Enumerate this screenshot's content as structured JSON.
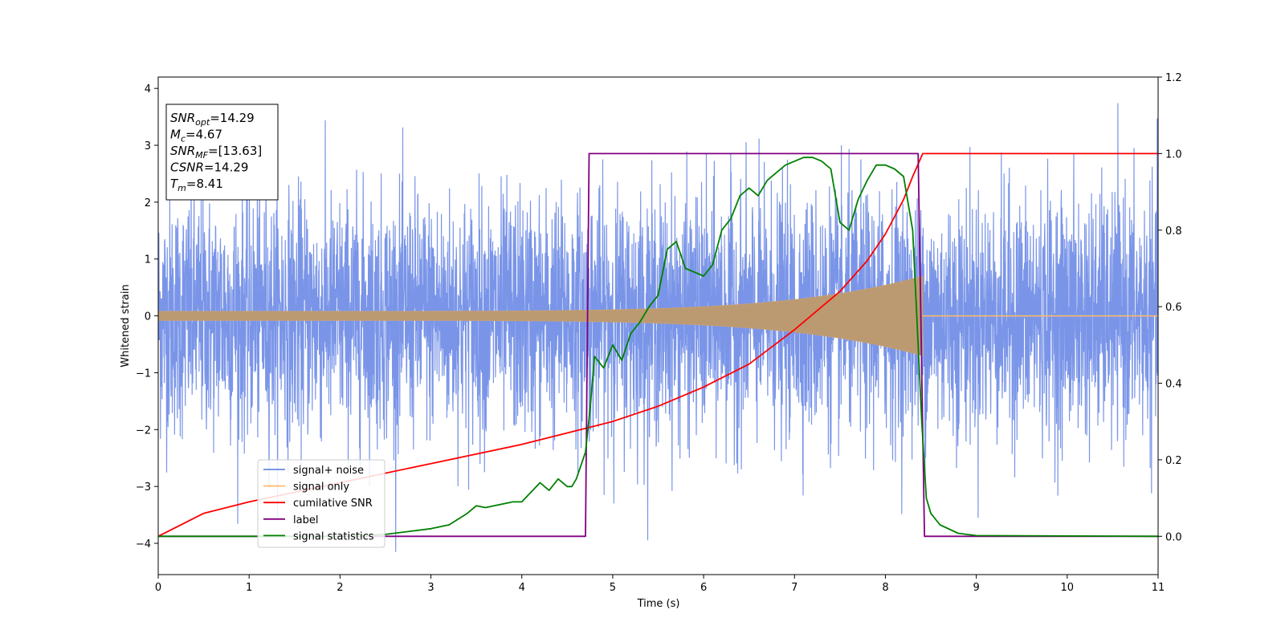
{
  "chart_data": {
    "type": "line",
    "xlabel": "Time (s)",
    "ylabel": "Whitened strain",
    "xlim": [
      0,
      11
    ],
    "ylim_left": [
      -4.55,
      4.2
    ],
    "ylim_right": [
      -0.1,
      1.2
    ],
    "x_ticks": [
      0,
      1,
      2,
      3,
      4,
      5,
      6,
      7,
      8,
      9,
      10,
      11
    ],
    "y_ticks_left": [
      -4,
      -3,
      -2,
      -1,
      0,
      1,
      2,
      3,
      4
    ],
    "y_ticks_left_labels": [
      "−4",
      "−3",
      "−2",
      "−1",
      "0",
      "1",
      "2",
      "3",
      "4"
    ],
    "y_ticks_right": [
      0.0,
      0.2,
      0.4,
      0.6,
      0.8,
      1.0,
      1.2
    ],
    "y_ticks_right_labels": [
      "0.0",
      "0.2",
      "0.4",
      "0.6",
      "0.8",
      "1.0",
      "1.2"
    ],
    "legend_position": "lower-left",
    "colors": {
      "noise": "#6b8ae6",
      "signal": "#ffbb66",
      "cumsnr": "#ff0000",
      "label": "#800080",
      "stats": "#008000"
    },
    "series": [
      {
        "name": "signal+ noise",
        "axis": "left",
        "description": "noisy whitened strain, roughly ±2 with peaks ±3.8",
        "x_range": [
          0,
          11
        ]
      },
      {
        "name": "signal only",
        "axis": "left",
        "chirp_start": 0,
        "chirp_end": 8.41,
        "amplitude_start": 0.08,
        "amplitude_end": 0.7
      },
      {
        "name": "cumilative SNR",
        "axis": "right",
        "x": [
          0,
          0.5,
          1,
          2,
          3,
          4,
          4.5,
          5,
          5.5,
          6,
          6.5,
          7,
          7.5,
          7.8,
          8.0,
          8.2,
          8.3,
          8.41,
          11
        ],
        "values": [
          0.0,
          0.06,
          0.09,
          0.14,
          0.19,
          0.24,
          0.27,
          0.3,
          0.34,
          0.39,
          0.45,
          0.54,
          0.64,
          0.72,
          0.79,
          0.88,
          0.94,
          1.0,
          1.0
        ]
      },
      {
        "name": "label",
        "axis": "right",
        "x": [
          0,
          4.7,
          4.74,
          8.36,
          8.43,
          11
        ],
        "values": [
          0,
          0,
          1,
          1,
          0,
          0
        ]
      },
      {
        "name": "signal statistics",
        "axis": "right",
        "x": [
          0,
          1,
          2,
          2.5,
          3,
          3.2,
          3.4,
          3.5,
          3.6,
          3.8,
          3.9,
          4.0,
          4.2,
          4.3,
          4.4,
          4.5,
          4.55,
          4.6,
          4.7,
          4.75,
          4.8,
          4.9,
          5.0,
          5.1,
          5.2,
          5.3,
          5.4,
          5.5,
          5.6,
          5.7,
          5.8,
          5.9,
          6.0,
          6.1,
          6.2,
          6.3,
          6.4,
          6.5,
          6.6,
          6.7,
          6.8,
          6.9,
          7.0,
          7.1,
          7.2,
          7.3,
          7.4,
          7.5,
          7.6,
          7.7,
          7.8,
          7.9,
          8.0,
          8.1,
          8.2,
          8.3,
          8.35,
          8.4,
          8.45,
          8.5,
          8.6,
          8.8,
          9.0,
          11
        ],
        "values": [
          0.0,
          0.0,
          0.0,
          0.005,
          0.02,
          0.03,
          0.06,
          0.08,
          0.075,
          0.085,
          0.09,
          0.09,
          0.14,
          0.12,
          0.15,
          0.13,
          0.13,
          0.15,
          0.22,
          0.33,
          0.47,
          0.44,
          0.5,
          0.46,
          0.53,
          0.56,
          0.6,
          0.63,
          0.75,
          0.77,
          0.7,
          0.69,
          0.68,
          0.71,
          0.8,
          0.83,
          0.89,
          0.91,
          0.89,
          0.93,
          0.95,
          0.97,
          0.98,
          0.99,
          0.99,
          0.98,
          0.96,
          0.82,
          0.8,
          0.88,
          0.93,
          0.97,
          0.97,
          0.96,
          0.94,
          0.8,
          0.55,
          0.3,
          0.1,
          0.06,
          0.03,
          0.008,
          0.002,
          0.0
        ]
      }
    ],
    "annotations": [
      {
        "text": "SNR",
        "sub": "opt",
        "value": "=14.29",
        "italic": true
      },
      {
        "text": "M",
        "sub": "c",
        "value": "=4.67",
        "italic": true
      },
      {
        "text": "SNR",
        "sub": "MF",
        "value": "=[13.63]",
        "italic": true
      },
      {
        "text": "CSNR",
        "sub": "",
        "value": "=14.29",
        "italic": true
      },
      {
        "text": "T",
        "sub": "m",
        "value": "=8.41",
        "italic": true
      }
    ]
  }
}
